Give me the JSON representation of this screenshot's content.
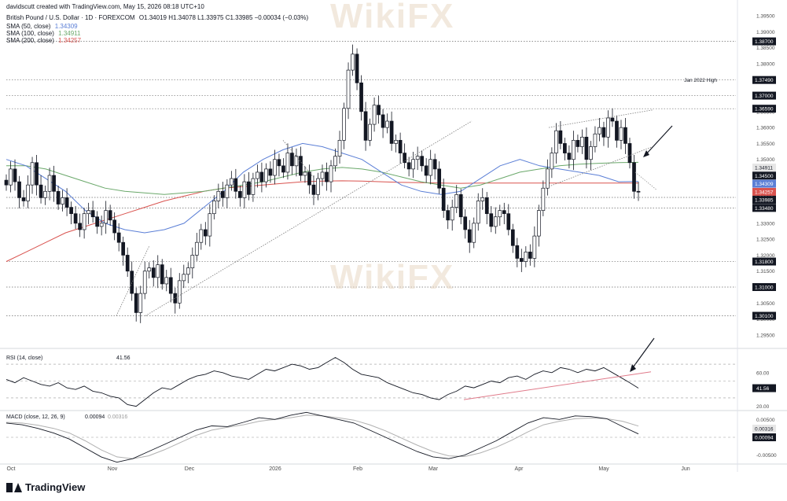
{
  "header": {
    "credit": "davidscutt created with TradingView.com, May 15, 2026 08:18 UTC+10",
    "title": "British Pound / U.S. Dollar · 1D · FOREXCOM",
    "ohlc": "O1.34019 H1.34078 L1.33975 C1.33985 −0.00034 (−0.03%)",
    "sma50_label": "SMA (50, close)",
    "sma50_value": "1.34309",
    "sma100_label": "SMA (100, close)",
    "sma100_value": "1.34911",
    "sma200_label": "SMA (200, close)",
    "sma200_value": "1.34257"
  },
  "footer": {
    "brand": "TradingView"
  },
  "watermark": "WikiFX",
  "colors": {
    "up": "#131722",
    "down": "#131722",
    "sma50": "#5b7fd6",
    "sma100": "#6aa86a",
    "sma200": "#d9534f",
    "rsi_line": "#131722",
    "rsi_trend": "#e07a8a",
    "macd": "#131722",
    "signal": "#b0b0b0"
  },
  "chart_data": [
    {
      "type": "candlestick",
      "title": "British Pound / U.S. Dollar · 1D · FOREXCOM",
      "ylim": [
        1.2925,
        1.3975
      ],
      "y_ticks": [
        1.395,
        1.39,
        1.385,
        1.38,
        1.375,
        1.37,
        1.365,
        1.36,
        1.355,
        1.35,
        1.345,
        1.34,
        1.335,
        1.33,
        1.325,
        1.32,
        1.315,
        1.31,
        1.305,
        1.3,
        1.295
      ],
      "x_labels": [
        "Oct",
        "Nov",
        "Dec",
        "2026",
        "Feb",
        "Mar",
        "Apr",
        "May",
        "Jun"
      ],
      "close_path": [
        1.342,
        1.347,
        1.343,
        1.338,
        1.337,
        1.342,
        1.349,
        1.342,
        1.338,
        1.34,
        1.345,
        1.34,
        1.336,
        1.338,
        1.335,
        1.333,
        1.33,
        1.328,
        1.333,
        1.334,
        1.332,
        1.329,
        1.33,
        1.334,
        1.331,
        1.327,
        1.324,
        1.32,
        1.315,
        1.308,
        1.302,
        1.308,
        1.315,
        1.316,
        1.313,
        1.317,
        1.311,
        1.313,
        1.308,
        1.305,
        1.312,
        1.314,
        1.316,
        1.32,
        1.324,
        1.328,
        1.326,
        1.333,
        1.337,
        1.34,
        1.338,
        1.342,
        1.344,
        1.34,
        1.338,
        1.343,
        1.339,
        1.344,
        1.346,
        1.343,
        1.347,
        1.345,
        1.35,
        1.348,
        1.346,
        1.352,
        1.348,
        1.351,
        1.345,
        1.346,
        1.342,
        1.339,
        1.344,
        1.346,
        1.343,
        1.348,
        1.351,
        1.356,
        1.366,
        1.378,
        1.383,
        1.374,
        1.365,
        1.356,
        1.361,
        1.367,
        1.364,
        1.36,
        1.362,
        1.355,
        1.356,
        1.352,
        1.349,
        1.347,
        1.35,
        1.351,
        1.348,
        1.345,
        1.35,
        1.347,
        1.341,
        1.334,
        1.331,
        1.335,
        1.339,
        1.332,
        1.328,
        1.324,
        1.33,
        1.337,
        1.338,
        1.333,
        1.329,
        1.332,
        1.334,
        1.333,
        1.328,
        1.323,
        1.319,
        1.318,
        1.321,
        1.319,
        1.326,
        1.334,
        1.341,
        1.347,
        1.352,
        1.359,
        1.355,
        1.352,
        1.35,
        1.356,
        1.354,
        1.357,
        1.35,
        1.354,
        1.358,
        1.36,
        1.357,
        1.363,
        1.362,
        1.356,
        1.36,
        1.355,
        1.349,
        1.34,
        1.3398
      ],
      "series": [
        {
          "name": "SMA (50, close)",
          "last": 1.34309
        },
        {
          "name": "SMA (100, close)",
          "last": 1.34911
        },
        {
          "name": "SMA (200, close)",
          "last": 1.34257
        }
      ],
      "sma50_path": [
        1.35,
        1.348,
        1.344,
        1.34,
        1.334,
        1.33,
        1.328,
        1.327,
        1.328,
        1.33,
        1.335,
        1.34,
        1.346,
        1.35,
        1.353,
        1.355,
        1.354,
        1.352,
        1.35,
        1.346,
        1.342,
        1.34,
        1.339,
        1.34,
        1.344,
        1.348,
        1.35,
        1.348,
        1.347,
        1.346,
        1.345,
        1.343,
        1.3431
      ],
      "sma100_path": [
        1.348,
        1.348,
        1.347,
        1.345,
        1.343,
        1.341,
        1.34,
        1.3395,
        1.339,
        1.3395,
        1.34,
        1.341,
        1.342,
        1.343,
        1.3445,
        1.346,
        1.347,
        1.3475,
        1.347,
        1.346,
        1.3445,
        1.343,
        1.342,
        1.341,
        1.342,
        1.344,
        1.346,
        1.347,
        1.348,
        1.3485,
        1.3488,
        1.349,
        1.3491
      ],
      "sma200_path": [
        1.318,
        1.321,
        1.324,
        1.327,
        1.329,
        1.331,
        1.333,
        1.335,
        1.337,
        1.3385,
        1.34,
        1.341,
        1.3415,
        1.342,
        1.3425,
        1.343,
        1.3432,
        1.3433,
        1.3432,
        1.343,
        1.3428,
        1.3427,
        1.3426,
        1.3425,
        1.3426,
        1.3426,
        1.3426,
        1.3426,
        1.3426,
        1.3426,
        1.3426,
        1.3426,
        1.3426
      ],
      "levels": [
        {
          "value": 1.387,
          "label": "1.38700"
        },
        {
          "value": 1.3749,
          "label": "1.37490",
          "note": "Jan 2022 High"
        },
        {
          "value": 1.37,
          "label": "1.37000"
        },
        {
          "value": 1.3659,
          "label": "1.36590"
        },
        {
          "value": 1.3381,
          "label": "1.33810"
        },
        {
          "value": 1.3348,
          "label": "1.33480"
        },
        {
          "value": 1.318,
          "label": "1.31800"
        },
        {
          "value": 1.31,
          "label": "1.31000"
        },
        {
          "value": 1.301,
          "label": "1.30100"
        }
      ],
      "price_tags": [
        {
          "value": 1.34911,
          "label": "1.34911",
          "color": "#e6e6e6"
        },
        {
          "value": 1.345,
          "label": "1.34500",
          "color": "#131722"
        },
        {
          "value": 1.34309,
          "label": "1.34309",
          "color": "#5b7fd6"
        },
        {
          "value": 1.34257,
          "label": "1.34257",
          "color": "#d9534f"
        },
        {
          "value": 1.33985,
          "label": "1.33985",
          "color": "#131722"
        }
      ]
    },
    {
      "type": "line",
      "title": "RSI (14, close)",
      "current": "41.56",
      "ylim": [
        15,
        85
      ],
      "y_ticks": [
        60.0,
        40.0,
        20.0
      ],
      "bands": [
        70,
        50,
        30
      ],
      "values": [
        52,
        48,
        54,
        50,
        46,
        44,
        48,
        42,
        40,
        44,
        38,
        36,
        32,
        30,
        22,
        20,
        28,
        36,
        42,
        40,
        46,
        52,
        56,
        58,
        62,
        60,
        56,
        54,
        52,
        58,
        64,
        62,
        66,
        70,
        68,
        64,
        66,
        72,
        78,
        72,
        64,
        58,
        56,
        54,
        48,
        44,
        40,
        36,
        34,
        30,
        28,
        34,
        38,
        44,
        42,
        46,
        50,
        48,
        54,
        56,
        52,
        58,
        62,
        60,
        66,
        64,
        60,
        64,
        62,
        66,
        60,
        54,
        48,
        41.56
      ],
      "trendline": {
        "x": [
          "Mar",
          "May"
        ],
        "y": [
          28,
          61
        ]
      }
    },
    {
      "type": "line",
      "title": "MACD (close, 12, 26, 9)",
      "macd_value": "0.00094",
      "signal_value": "0.00316",
      "ylim": [
        -0.0075,
        0.0075
      ],
      "y_ticks": [
        0.005,
        -0.005
      ],
      "macd": [
        0.004,
        0.0035,
        0.0025,
        0.0012,
        -0.0005,
        -0.003,
        -0.0055,
        -0.007,
        -0.006,
        -0.004,
        -0.002,
        0.0,
        0.002,
        0.0032,
        0.003,
        0.0042,
        0.0055,
        0.005,
        0.0062,
        0.007,
        0.006,
        0.005,
        0.004,
        0.002,
        0.0,
        -0.002,
        -0.004,
        -0.0055,
        -0.006,
        -0.005,
        -0.003,
        -0.001,
        0.0015,
        0.004,
        0.0055,
        0.005,
        0.006,
        0.0058,
        0.0052,
        0.003,
        0.00094
      ],
      "signal": [
        0.0042,
        0.004,
        0.0034,
        0.0025,
        0.0012,
        -0.001,
        -0.0035,
        -0.0055,
        -0.006,
        -0.0052,
        -0.0035,
        -0.0015,
        0.0005,
        0.002,
        0.0028,
        0.0035,
        0.0045,
        0.005,
        0.0055,
        0.0062,
        0.006,
        0.0055,
        0.0048,
        0.0035,
        0.0018,
        -0.0002,
        -0.0022,
        -0.004,
        -0.0052,
        -0.0054,
        -0.0044,
        -0.0028,
        -0.0008,
        0.0015,
        0.0035,
        0.0045,
        0.0052,
        0.0054,
        0.0052,
        0.0045,
        0.00316
      ]
    }
  ]
}
